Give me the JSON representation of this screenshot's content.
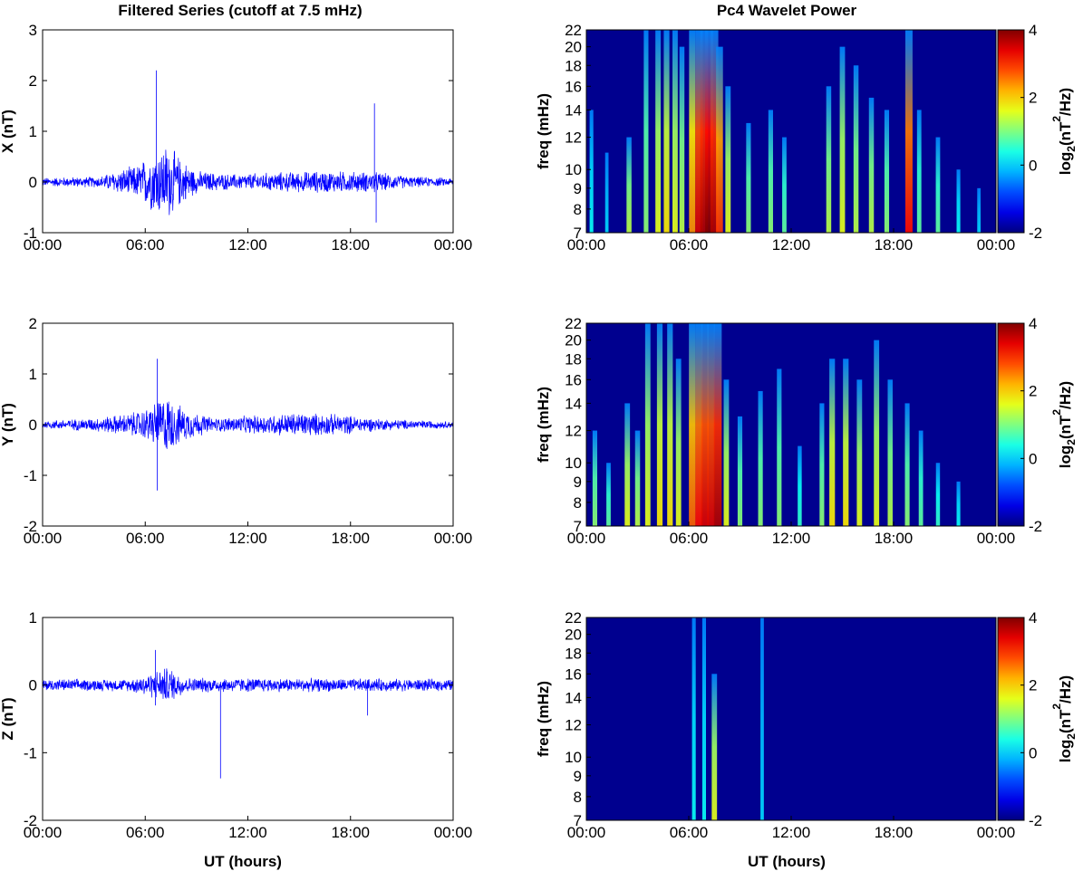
{
  "left_title": "Filtered Series (cutoff at 7.5 mHz)",
  "right_title": "Pc4 Wavelet Power",
  "colors": {
    "series": "#0000ff",
    "background": "#00008f",
    "axes": "#000000"
  },
  "chart_data": [
    {
      "type": "line",
      "component": "X",
      "ylabel": "X (nT)",
      "ylim": [
        -1,
        3
      ],
      "yticks": [
        -1,
        0,
        1,
        2,
        3
      ],
      "xticks": [
        "00:00",
        "06:00",
        "12:00",
        "18:00",
        "00:00"
      ],
      "x_range_hours": [
        0,
        24
      ],
      "noise_envelope": [
        {
          "x": 0,
          "amp": 0.08
        },
        {
          "x": 3.3,
          "amp": 0.1
        },
        {
          "x": 4.5,
          "amp": 0.22
        },
        {
          "x": 5.5,
          "amp": 0.3
        },
        {
          "x": 6.5,
          "amp": 0.55
        },
        {
          "x": 7.3,
          "amp": 0.7
        },
        {
          "x": 8.0,
          "amp": 0.45
        },
        {
          "x": 9.0,
          "amp": 0.2
        },
        {
          "x": 11.0,
          "amp": 0.14
        },
        {
          "x": 14.0,
          "amp": 0.18
        },
        {
          "x": 16.5,
          "amp": 0.2
        },
        {
          "x": 19.5,
          "amp": 0.18
        },
        {
          "x": 21.5,
          "amp": 0.1
        },
        {
          "x": 24,
          "amp": 0.07
        }
      ],
      "spikes": [
        {
          "x": 6.65,
          "y_max": 2.2,
          "y_min": -0.4
        },
        {
          "x": 19.4,
          "y_max": 1.55,
          "y_min": -0.2
        },
        {
          "x": 19.5,
          "y_max": 0.1,
          "y_min": -0.8
        }
      ]
    },
    {
      "type": "line",
      "component": "Y",
      "ylabel": "Y (nT)",
      "ylim": [
        -2,
        2
      ],
      "yticks": [
        -2,
        -1,
        0,
        1,
        2
      ],
      "xticks": [
        "00:00",
        "06:00",
        "12:00",
        "18:00",
        "00:00"
      ],
      "x_range_hours": [
        0,
        24
      ],
      "noise_envelope": [
        {
          "x": 0,
          "amp": 0.07
        },
        {
          "x": 3.0,
          "amp": 0.12
        },
        {
          "x": 5.0,
          "amp": 0.2
        },
        {
          "x": 6.0,
          "amp": 0.28
        },
        {
          "x": 7.2,
          "amp": 0.55
        },
        {
          "x": 8.2,
          "amp": 0.3
        },
        {
          "x": 10.0,
          "amp": 0.12
        },
        {
          "x": 15.0,
          "amp": 0.22
        },
        {
          "x": 17.5,
          "amp": 0.18
        },
        {
          "x": 20.0,
          "amp": 0.1
        },
        {
          "x": 24,
          "amp": 0.06
        }
      ],
      "spikes": [
        {
          "x": 6.7,
          "y_max": 1.3,
          "y_min": -1.3
        }
      ]
    },
    {
      "type": "line",
      "component": "Z",
      "ylabel": "Z (nT)",
      "ylim": [
        -2,
        1
      ],
      "yticks": [
        -2,
        -1,
        0,
        1
      ],
      "xticks": [
        "00:00",
        "06:00",
        "12:00",
        "18:00",
        "00:00"
      ],
      "x_range_hours": [
        0,
        24
      ],
      "noise_envelope": [
        {
          "x": 0,
          "amp": 0.08
        },
        {
          "x": 5.0,
          "amp": 0.08
        },
        {
          "x": 6.5,
          "amp": 0.18
        },
        {
          "x": 7.3,
          "amp": 0.25
        },
        {
          "x": 8.5,
          "amp": 0.1
        },
        {
          "x": 24,
          "amp": 0.08
        }
      ],
      "spikes": [
        {
          "x": 6.6,
          "y_max": 0.52,
          "y_min": -0.3
        },
        {
          "x": 10.4,
          "y_max": 0.05,
          "y_min": -1.38
        },
        {
          "x": 19.0,
          "y_max": 0.05,
          "y_min": -0.45
        }
      ]
    },
    {
      "type": "heatmap",
      "component": "X",
      "ylabel": "freq (mHz)",
      "freq_range_mhz": [
        7,
        22
      ],
      "yticks": [
        7,
        8,
        9,
        10,
        12,
        14,
        16,
        18,
        20,
        22
      ],
      "xticks": [
        "00:00",
        "06:00",
        "12:00",
        "18:00",
        "00:00"
      ],
      "x_range_hours": [
        0,
        24
      ],
      "colorbar": {
        "label": "log2(nT²/Hz)",
        "label_base": "log",
        "label_sub": "2",
        "label_rest": "(nT",
        "label_sup": "2",
        "label_end": "/Hz)",
        "range": [
          -2,
          4
        ],
        "ticks": [
          -2,
          0,
          2,
          4
        ]
      },
      "streaks": [
        {
          "x": 0.3,
          "power": 0.3,
          "top": 14
        },
        {
          "x": 1.2,
          "power": 0.25,
          "top": 11
        },
        {
          "x": 2.5,
          "power": 0.5,
          "top": 12
        },
        {
          "x": 3.5,
          "power": 0.45,
          "top": 22
        },
        {
          "x": 4.2,
          "power": 0.55,
          "top": 22
        },
        {
          "x": 4.7,
          "power": 0.6,
          "top": 22
        },
        {
          "x": 5.2,
          "power": 0.55,
          "top": 22
        },
        {
          "x": 5.6,
          "power": 0.5,
          "top": 20
        },
        {
          "x": 6.2,
          "power": 0.7,
          "top": 22
        },
        {
          "x": 6.6,
          "power": 0.9,
          "top": 22
        },
        {
          "x": 6.9,
          "power": 0.95,
          "top": 22
        },
        {
          "x": 7.2,
          "power": 1.0,
          "top": 22
        },
        {
          "x": 7.5,
          "power": 0.95,
          "top": 22
        },
        {
          "x": 7.8,
          "power": 0.8,
          "top": 20
        },
        {
          "x": 8.3,
          "power": 0.55,
          "top": 16
        },
        {
          "x": 9.5,
          "power": 0.45,
          "top": 13
        },
        {
          "x": 10.8,
          "power": 0.45,
          "top": 14
        },
        {
          "x": 11.6,
          "power": 0.4,
          "top": 12
        },
        {
          "x": 14.2,
          "power": 0.5,
          "top": 16
        },
        {
          "x": 15.0,
          "power": 0.55,
          "top": 20
        },
        {
          "x": 15.8,
          "power": 0.5,
          "top": 18
        },
        {
          "x": 16.7,
          "power": 0.5,
          "top": 15
        },
        {
          "x": 17.6,
          "power": 0.45,
          "top": 14
        },
        {
          "x": 18.9,
          "power": 0.85,
          "top": 22
        },
        {
          "x": 19.5,
          "power": 0.4,
          "top": 14
        },
        {
          "x": 20.6,
          "power": 0.4,
          "top": 12
        },
        {
          "x": 21.8,
          "power": 0.3,
          "top": 10
        },
        {
          "x": 23.0,
          "power": 0.25,
          "top": 9
        }
      ]
    },
    {
      "type": "heatmap",
      "component": "Y",
      "ylabel": "freq (mHz)",
      "freq_range_mhz": [
        7,
        22
      ],
      "yticks": [
        7,
        8,
        9,
        10,
        12,
        14,
        16,
        18,
        20,
        22
      ],
      "xticks": [
        "00:00",
        "06:00",
        "12:00",
        "18:00",
        "00:00"
      ],
      "x_range_hours": [
        0,
        24
      ],
      "colorbar": {
        "label": "log2(nT²/Hz)",
        "label_base": "log",
        "label_sub": "2",
        "label_rest": "(nT",
        "label_sup": "2",
        "label_end": "/Hz)",
        "range": [
          -2,
          4
        ],
        "ticks": [
          -2,
          0,
          2,
          4
        ]
      },
      "streaks": [
        {
          "x": 0.5,
          "power": 0.45,
          "top": 12
        },
        {
          "x": 1.3,
          "power": 0.4,
          "top": 10
        },
        {
          "x": 2.4,
          "power": 0.55,
          "top": 14
        },
        {
          "x": 3.0,
          "power": 0.5,
          "top": 12
        },
        {
          "x": 3.6,
          "power": 0.55,
          "top": 22
        },
        {
          "x": 4.3,
          "power": 0.6,
          "top": 22
        },
        {
          "x": 4.9,
          "power": 0.6,
          "top": 22
        },
        {
          "x": 5.4,
          "power": 0.55,
          "top": 18
        },
        {
          "x": 6.2,
          "power": 0.75,
          "top": 22
        },
        {
          "x": 6.6,
          "power": 0.85,
          "top": 22
        },
        {
          "x": 6.95,
          "power": 0.9,
          "top": 22
        },
        {
          "x": 7.3,
          "power": 0.9,
          "top": 22
        },
        {
          "x": 7.7,
          "power": 0.95,
          "top": 22
        },
        {
          "x": 8.2,
          "power": 0.55,
          "top": 16
        },
        {
          "x": 9.0,
          "power": 0.45,
          "top": 13
        },
        {
          "x": 10.2,
          "power": 0.45,
          "top": 15
        },
        {
          "x": 11.3,
          "power": 0.45,
          "top": 17
        },
        {
          "x": 12.5,
          "power": 0.35,
          "top": 11
        },
        {
          "x": 13.8,
          "power": 0.45,
          "top": 14
        },
        {
          "x": 14.4,
          "power": 0.6,
          "top": 18
        },
        {
          "x": 15.2,
          "power": 0.6,
          "top": 18
        },
        {
          "x": 16.0,
          "power": 0.55,
          "top": 16
        },
        {
          "x": 17.0,
          "power": 0.55,
          "top": 20
        },
        {
          "x": 17.8,
          "power": 0.5,
          "top": 16
        },
        {
          "x": 18.8,
          "power": 0.45,
          "top": 14
        },
        {
          "x": 19.6,
          "power": 0.4,
          "top": 12
        },
        {
          "x": 20.6,
          "power": 0.35,
          "top": 10
        },
        {
          "x": 21.8,
          "power": 0.3,
          "top": 9
        }
      ]
    },
    {
      "type": "heatmap",
      "component": "Z",
      "ylabel": "freq (mHz)",
      "freq_range_mhz": [
        7,
        22
      ],
      "yticks": [
        7,
        8,
        9,
        10,
        12,
        14,
        16,
        18,
        20,
        22
      ],
      "xticks": [
        "00:00",
        "06:00",
        "12:00",
        "18:00",
        "00:00"
      ],
      "x_range_hours": [
        0,
        24
      ],
      "colorbar": {
        "label": "log2(nT²/Hz)",
        "label_base": "log",
        "label_sub": "2",
        "label_rest": "(nT",
        "label_sup": "2",
        "label_end": "/Hz)",
        "range": [
          -2,
          4
        ],
        "ticks": [
          -2,
          0,
          2,
          4
        ]
      },
      "streaks": [
        {
          "x": 6.3,
          "power": 0.3,
          "top": 22
        },
        {
          "x": 6.9,
          "power": 0.3,
          "top": 22
        },
        {
          "x": 7.5,
          "power": 0.55,
          "top": 16
        },
        {
          "x": 10.3,
          "power": 0.25,
          "top": 22
        }
      ]
    }
  ],
  "xlabel": "UT (hours)"
}
